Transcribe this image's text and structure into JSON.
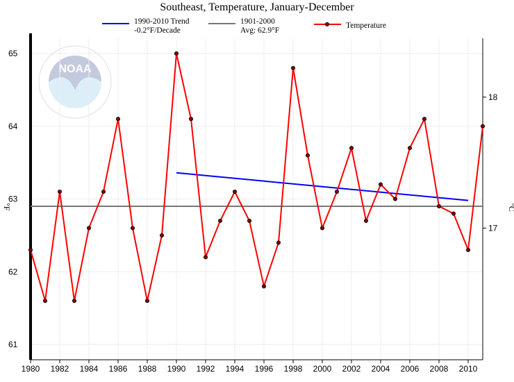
{
  "chart_data": {
    "type": "line",
    "title": "Southeast, Temperature, January-December",
    "ylabel": "°F",
    "ylabel_right": "°C",
    "xlim": [
      1980,
      2011
    ],
    "ylim": [
      60.9,
      65.3
    ],
    "grid": true,
    "legend_placement": "top",
    "x_ticks": [
      "1980",
      "1982",
      "1984",
      "1986",
      "1988",
      "1990",
      "1992",
      "1994",
      "1996",
      "1998",
      "2000",
      "2002",
      "2004",
      "2006",
      "2008",
      "2010"
    ],
    "y_ticks": [
      "61",
      "62",
      "63",
      "64",
      "65"
    ],
    "y_ticks_right": [
      "17",
      "18"
    ],
    "series": [
      {
        "name": "Temperature",
        "color": "#ff0000",
        "x": [
          1980,
          1981,
          1982,
          1983,
          1984,
          1985,
          1986,
          1987,
          1988,
          1989,
          1990,
          1991,
          1992,
          1993,
          1994,
          1995,
          1996,
          1997,
          1998,
          1999,
          2000,
          2001,
          2002,
          2003,
          2004,
          2005,
          2006,
          2007,
          2008,
          2009,
          2010,
          2011
        ],
        "values": [
          62.3,
          61.6,
          63.1,
          61.6,
          62.6,
          63.1,
          64.1,
          62.6,
          61.6,
          62.5,
          65.0,
          64.1,
          62.2,
          62.7,
          63.1,
          62.7,
          61.8,
          62.4,
          64.8,
          63.6,
          62.6,
          63.1,
          63.7,
          62.7,
          63.2,
          63.0,
          63.7,
          64.1,
          62.9,
          62.8,
          62.3,
          64.0
        ]
      }
    ],
    "trend": {
      "label1": "1990-2010 Trend",
      "label2": "-0.2°F/Decade",
      "color": "#0000ff",
      "x": [
        1990,
        2010
      ],
      "values": [
        63.36,
        62.98
      ]
    },
    "average": {
      "label1": "1901-2000",
      "label2": "Avg: 62.9°F",
      "color": "#777777",
      "value": 62.9
    }
  },
  "logo": {
    "text": "NOAA",
    "ring_text": "NATIONAL OCEANIC AND ATMOSPHERIC ADMINISTRATION · U.S. DEPARTMENT OF COMMERCE"
  }
}
